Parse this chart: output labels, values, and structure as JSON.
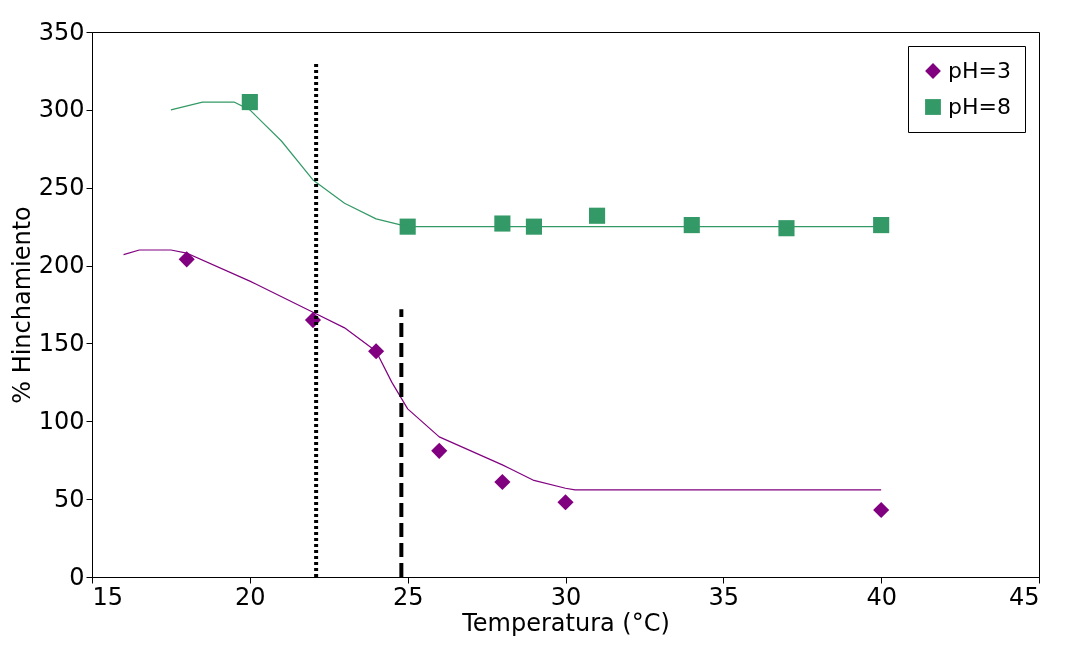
{
  "chart_data": {
    "type": "scatter",
    "xlabel": "Temperatura (°C)",
    "ylabel": "% Hinchamiento",
    "xlim": [
      15,
      45
    ],
    "ylim": [
      0,
      350
    ],
    "xticks": [
      15,
      20,
      25,
      30,
      35,
      40,
      45
    ],
    "yticks": [
      0,
      50,
      100,
      150,
      200,
      250,
      300,
      350
    ],
    "grid": false,
    "legend": "top right",
    "series": [
      {
        "name": "pH=3",
        "marker": "diamond",
        "color": "#800080",
        "x": [
          18,
          22,
          24,
          26,
          28,
          30,
          40
        ],
        "values": [
          204,
          165,
          145,
          81,
          61,
          48,
          43
        ]
      },
      {
        "name": "pH=8",
        "marker": "square",
        "color": "#339966",
        "x": [
          20,
          25,
          28,
          29,
          31,
          34,
          37,
          40
        ],
        "values": [
          305,
          225,
          227,
          225,
          232,
          226,
          224,
          226
        ]
      },
      {
        "type": "line",
        "marker": "none",
        "line_style": "solid",
        "color": "#800080",
        "x": [
          16,
          16.5,
          17.5,
          18,
          20,
          22,
          23,
          24,
          24.5,
          25,
          26,
          28,
          29,
          30,
          30.3,
          40
        ],
        "values": [
          207,
          210,
          210,
          208,
          190,
          170,
          160,
          145,
          125,
          108,
          90,
          72,
          62,
          57,
          56,
          56
        ]
      },
      {
        "type": "line",
        "marker": "none",
        "line_style": "solid",
        "color": "#339966",
        "x": [
          17.5,
          18.5,
          19.5,
          20,
          21,
          22,
          23,
          24,
          25,
          40
        ],
        "values": [
          300,
          305,
          305,
          300,
          280,
          255,
          240,
          230,
          225,
          225
        ]
      },
      {
        "type": "line",
        "marker": "none",
        "line_style": "dotted",
        "color": "#000000",
        "x": [
          22.1,
          22.1
        ],
        "values": [
          0,
          330
        ]
      },
      {
        "type": "line",
        "marker": "none",
        "line_style": "dashed",
        "color": "#000000",
        "x": [
          24.8,
          24.8
        ],
        "values": [
          0,
          172
        ]
      }
    ]
  }
}
